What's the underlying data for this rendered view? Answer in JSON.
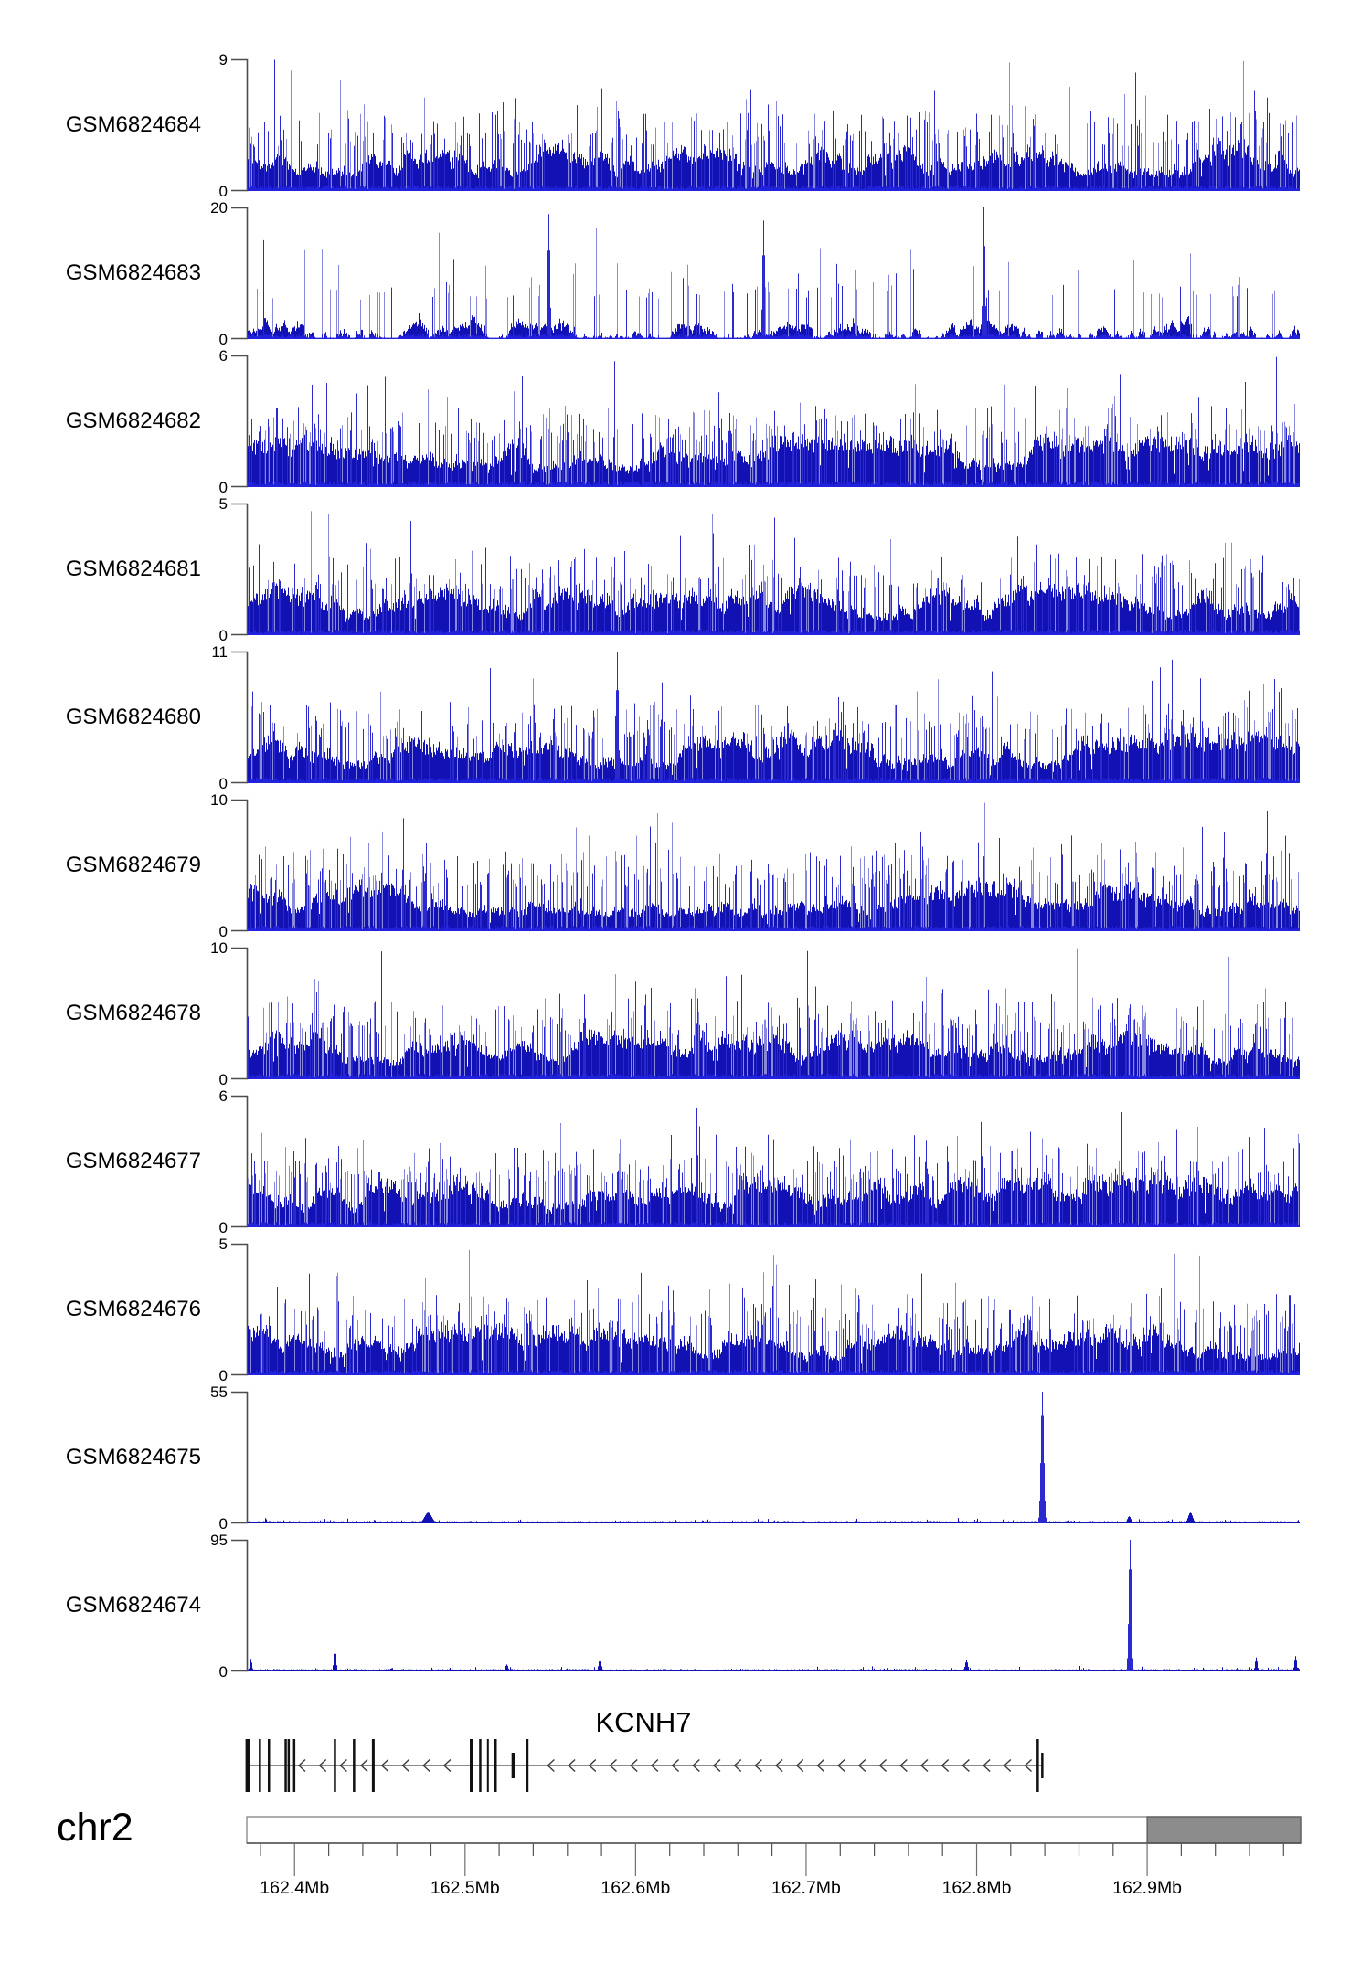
{
  "chart_data": {
    "type": "area",
    "title": "",
    "description": "Genome browser read-coverage tracks over chr2 with KCNH7 gene model and genomic axis",
    "chromosome_label": "chr2",
    "zero_label": "0",
    "x_axis": {
      "unit": "Mb",
      "range_mb": [
        162.372,
        162.99
      ],
      "major_ticks_mb": [
        162.4,
        162.5,
        162.6,
        162.7,
        162.8,
        162.9
      ],
      "major_tick_labels": [
        "162.4Mb",
        "162.5Mb",
        "162.6Mb",
        "162.7Mb",
        "162.8Mb",
        "162.9Mb"
      ],
      "minor_tick_step_mb": 0.02,
      "grid": false
    },
    "ideogram": {
      "highlight_start_mb": 162.9,
      "highlight_end_mb": 162.99
    },
    "gene_track": {
      "name": "KCNH7",
      "strand": "-",
      "start_mb": 162.3726,
      "end_mb": 162.8385,
      "exons": [
        {
          "mb": 162.3726,
          "h": "tall",
          "w": 5
        },
        {
          "mb": 162.3797,
          "h": "tall",
          "w": 2.5
        },
        {
          "mb": 162.385,
          "h": "tall",
          "w": 2.5
        },
        {
          "mb": 162.3948,
          "h": "tall",
          "w": 2.5
        },
        {
          "mb": 162.3966,
          "h": "tall",
          "w": 2.5
        },
        {
          "mb": 162.3998,
          "h": "tall",
          "w": 2.5
        },
        {
          "mb": 162.4237,
          "h": "tall",
          "w": 2.5
        },
        {
          "mb": 162.4349,
          "h": "tall",
          "w": 2.5
        },
        {
          "mb": 162.4462,
          "h": "tall",
          "w": 3
        },
        {
          "mb": 162.5036,
          "h": "tall",
          "w": 3
        },
        {
          "mb": 162.5089,
          "h": "tall",
          "w": 2.5
        },
        {
          "mb": 162.5134,
          "h": "tall",
          "w": 2
        },
        {
          "mb": 162.5178,
          "h": "tall",
          "w": 3
        },
        {
          "mb": 162.5282,
          "h": "short",
          "w": 3.5
        },
        {
          "mb": 162.5365,
          "h": "tall",
          "w": 2.5
        },
        {
          "mb": 162.8358,
          "h": "tall",
          "w": 2.5
        },
        {
          "mb": 162.8385,
          "h": "short",
          "w": 2.5
        }
      ]
    },
    "tracks": [
      {
        "label": "GSM6824684",
        "ymin": 0,
        "ymax": 9,
        "style": "dense",
        "peaks": []
      },
      {
        "label": "GSM6824683",
        "ymin": 0,
        "ymax": 20,
        "style": "sparse",
        "peaks": [
          [
            162.549,
            19,
            1.2
          ],
          [
            162.675,
            18,
            1.2
          ],
          [
            162.804,
            20,
            1.2
          ]
        ]
      },
      {
        "label": "GSM6824682",
        "ymin": 0,
        "ymax": 6,
        "style": "dense",
        "peaks": []
      },
      {
        "label": "GSM6824681",
        "ymin": 0,
        "ymax": 5,
        "style": "dense",
        "peaks": []
      },
      {
        "label": "GSM6824680",
        "ymin": 0,
        "ymax": 11,
        "style": "dense",
        "peaks": [
          [
            162.589,
            11,
            1.2
          ]
        ]
      },
      {
        "label": "GSM6824679",
        "ymin": 0,
        "ymax": 10,
        "style": "dense",
        "peaks": []
      },
      {
        "label": "GSM6824678",
        "ymin": 0,
        "ymax": 10,
        "style": "dense",
        "peaks": []
      },
      {
        "label": "GSM6824677",
        "ymin": 0,
        "ymax": 6,
        "style": "dense",
        "peaks": []
      },
      {
        "label": "GSM6824676",
        "ymin": 0,
        "ymax": 5,
        "style": "dense",
        "peaks": []
      },
      {
        "label": "GSM6824675",
        "ymin": 0,
        "ymax": 55,
        "style": "flat",
        "peaks": [
          [
            162.478,
            4.5,
            4
          ],
          [
            162.8385,
            55,
            1.6
          ],
          [
            162.889,
            3,
            2
          ],
          [
            162.925,
            4.5,
            2.5
          ]
        ]
      },
      {
        "label": "GSM6824674",
        "ymin": 0,
        "ymax": 95,
        "style": "flat",
        "peaks": [
          [
            162.374,
            9,
            1.2
          ],
          [
            162.4235,
            18,
            1.2
          ],
          [
            162.524,
            5,
            1.5
          ],
          [
            162.579,
            9,
            1.5
          ],
          [
            162.794,
            8,
            1.5
          ],
          [
            162.8897,
            95,
            1.4
          ],
          [
            162.9637,
            10,
            1.2
          ],
          [
            162.987,
            11,
            1.2
          ]
        ]
      }
    ],
    "colors": {
      "bar_dark": "#1111b4",
      "bar_mid": "#2a2ad0",
      "bar_light": "#8888dd",
      "bar_bright": "#2222dd",
      "axis": "#4d4d4d",
      "tick": "#6e6e6e",
      "ideogram_fill": "#8c8c8c",
      "ideogram_border": "#828282",
      "exon": "#111111",
      "intron_line": "#8a8a8a",
      "chevron": "#3a3a3a",
      "text": "#000000"
    }
  }
}
